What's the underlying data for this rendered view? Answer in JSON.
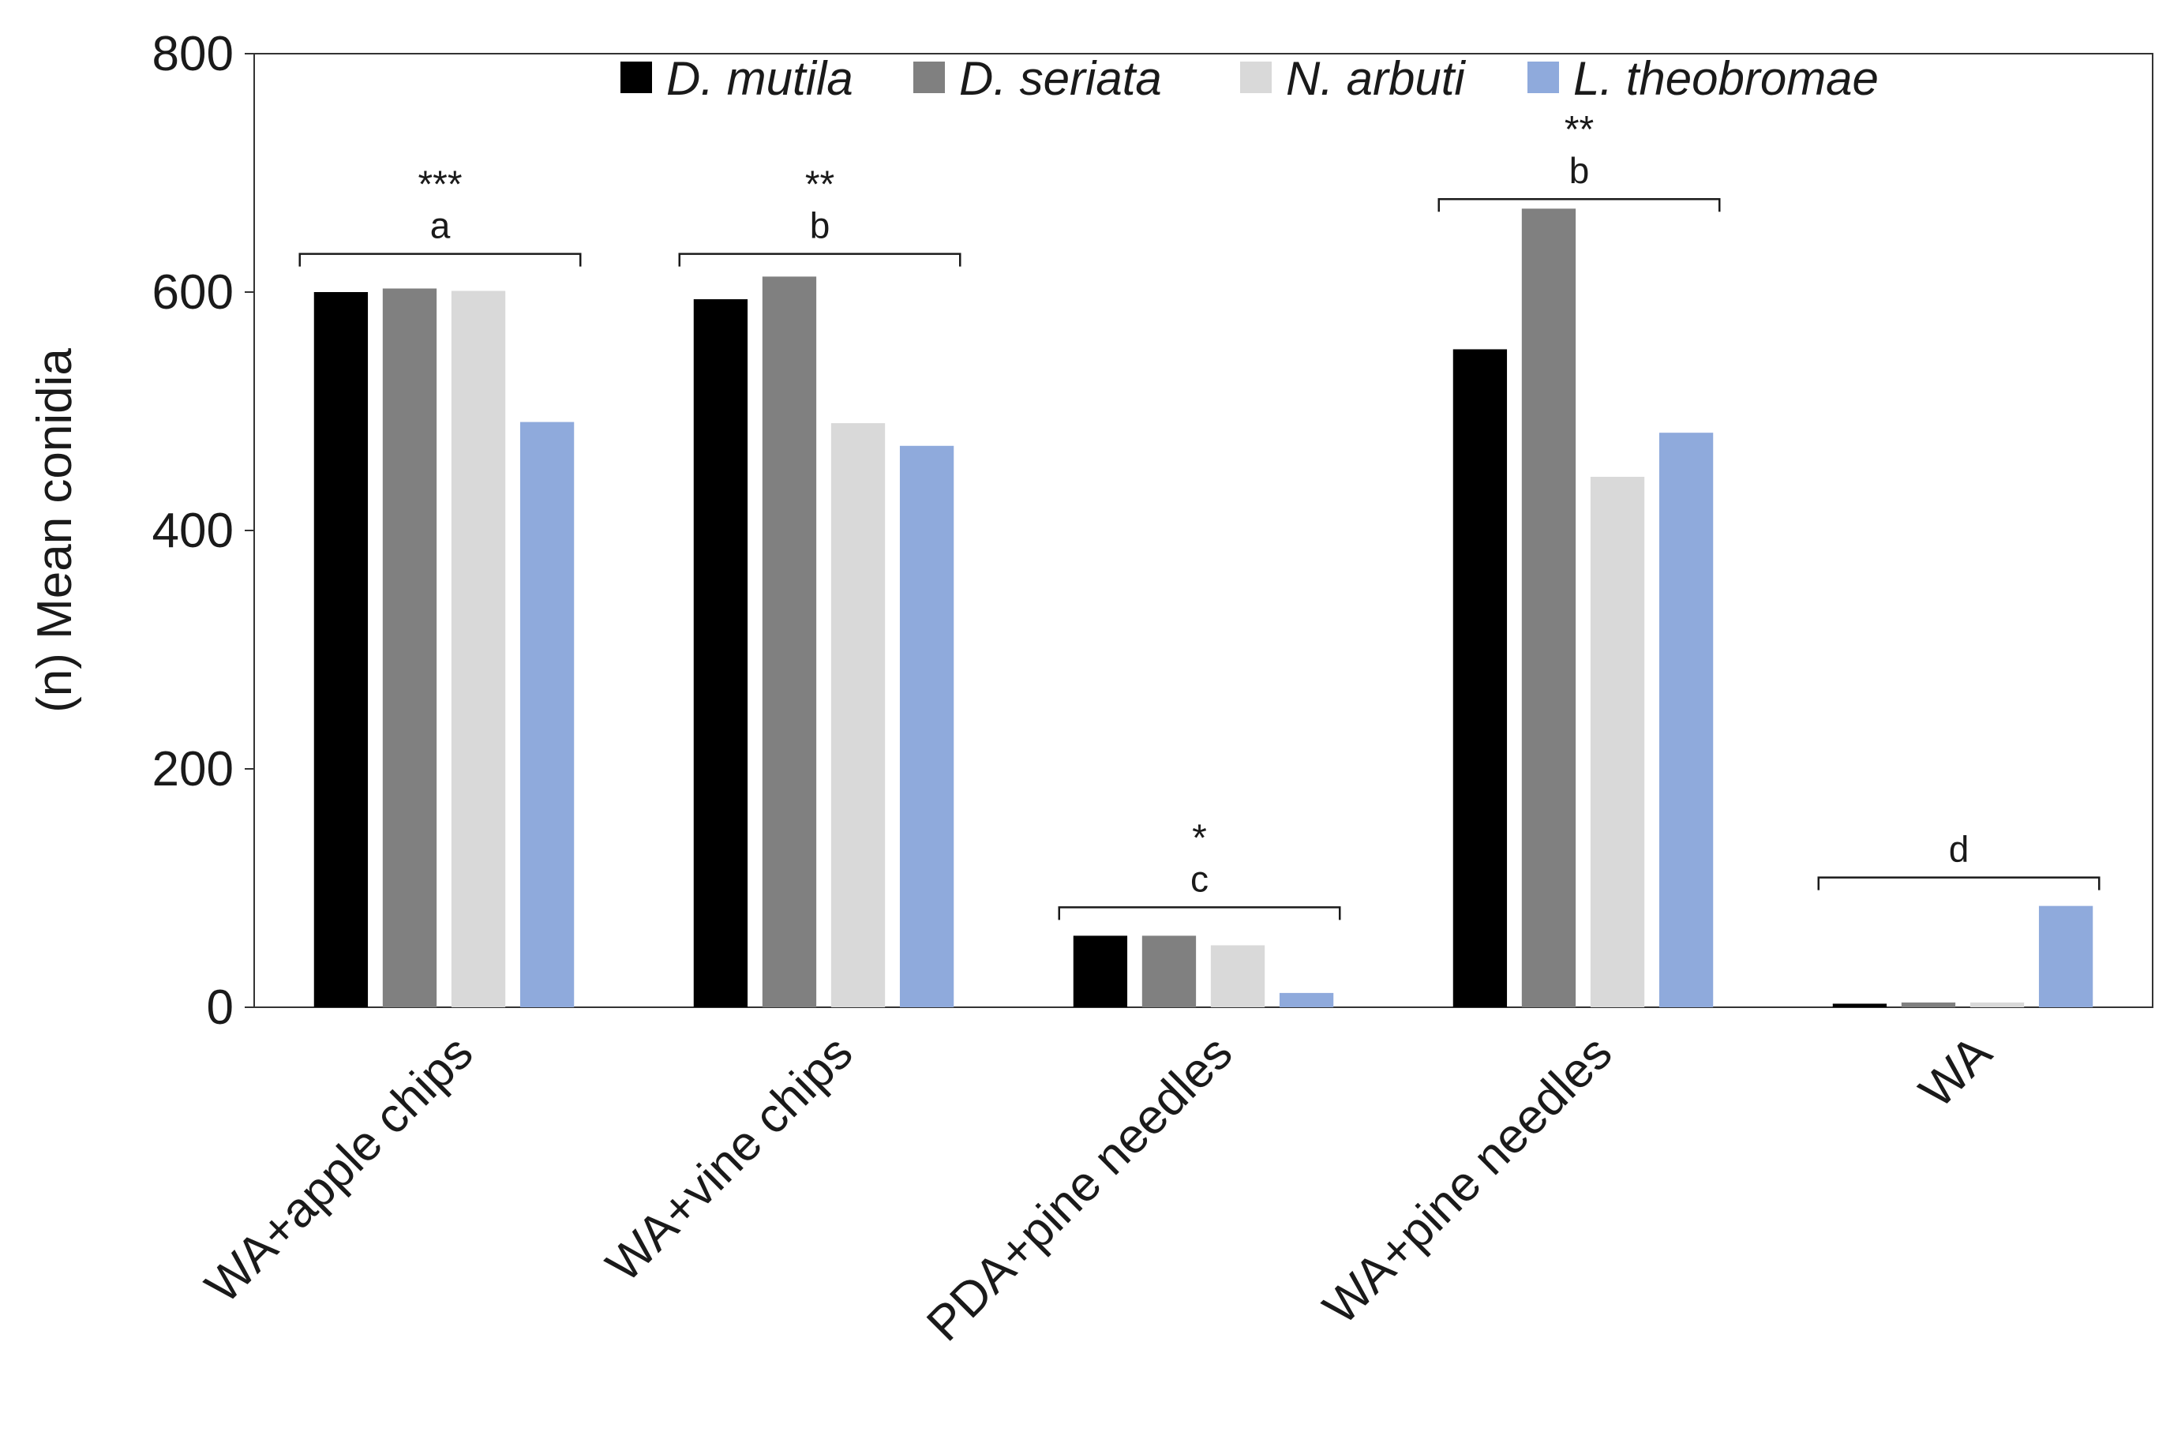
{
  "chart_data": {
    "type": "bar",
    "ylabel": "(n) Mean conidia",
    "ylim": [
      0,
      800
    ],
    "yticks": [
      0,
      200,
      400,
      600,
      800
    ],
    "grid": false,
    "legend_position": "top",
    "categories": [
      "WA+apple chips",
      "WA+vine chips",
      "PDA+pine needles",
      "WA+pine needles",
      "WA"
    ],
    "series": [
      {
        "name": "D. mutila",
        "color": "#000000",
        "values": [
          600,
          594,
          60,
          552,
          3
        ]
      },
      {
        "name": "D. seriata",
        "color": "#808080",
        "values": [
          603,
          613,
          60,
          670,
          4
        ]
      },
      {
        "name": "N. arbuti",
        "color": "#d9d9d9",
        "values": [
          601,
          490,
          52,
          445,
          4
        ]
      },
      {
        "name": "L. theobromae",
        "color": "#8faadc",
        "values": [
          491,
          471,
          12,
          482,
          85
        ]
      }
    ],
    "annotations": [
      {
        "category": "WA+apple chips",
        "stars": "***",
        "letter": "a"
      },
      {
        "category": "WA+vine chips",
        "stars": "**",
        "letter": "b"
      },
      {
        "category": "PDA+pine needles",
        "stars": "*",
        "letter": "c"
      },
      {
        "category": "WA+pine needles",
        "stars": "**",
        "letter": "b"
      },
      {
        "category": "WA",
        "stars": "",
        "letter": "d"
      }
    ]
  }
}
